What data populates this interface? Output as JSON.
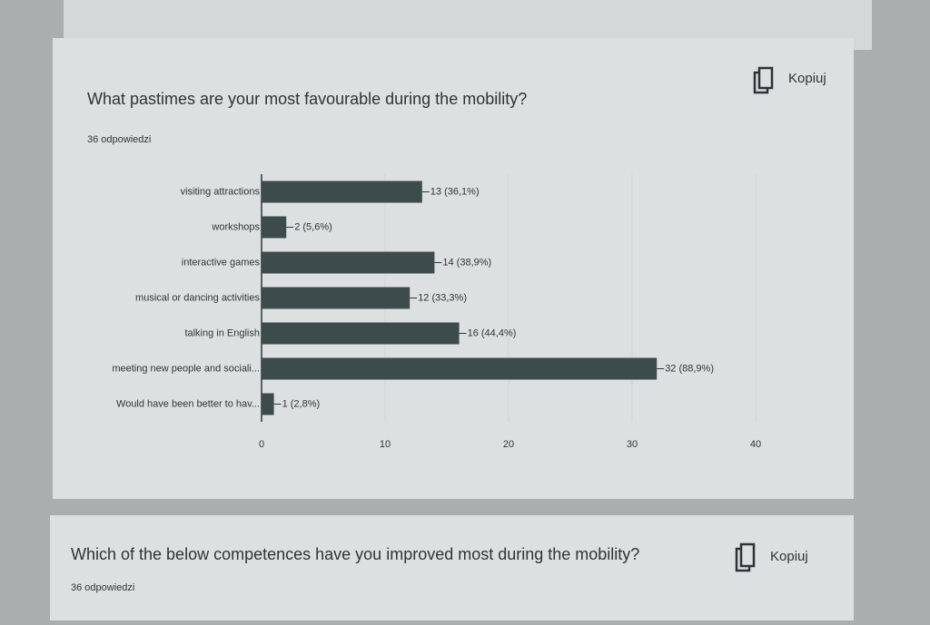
{
  "chart_data": {
    "type": "bar",
    "orientation": "horizontal",
    "title": "What pastimes are your most favourable during the mobility?",
    "subtitle": "36 odpowiedzi",
    "categories": [
      "visiting attractions",
      "workshops",
      "interactive games",
      "musical or dancing activities",
      "talking in English",
      "meeting new people and sociali...",
      "Would have been better to hav..."
    ],
    "values": [
      13,
      2,
      14,
      12,
      16,
      32,
      1
    ],
    "value_labels": [
      "13 (36,1%)",
      "2 (5,6%)",
      "14 (38,9%)",
      "12 (33,3%)",
      "16 (44,4%)",
      "32 (88,9%)",
      "1 (2,8%)"
    ],
    "color": "#3e4b4d",
    "xlim": [
      0,
      40
    ],
    "xticks": [
      0,
      10,
      20,
      30,
      40
    ],
    "grid": true
  },
  "cards": [
    {
      "copy_button": "Kopiuj"
    },
    {
      "title": "Which of the below competences have you improved most during the mobility?",
      "responses": "36 odpowiedzi",
      "copy_button": "Kopiuj"
    }
  ]
}
